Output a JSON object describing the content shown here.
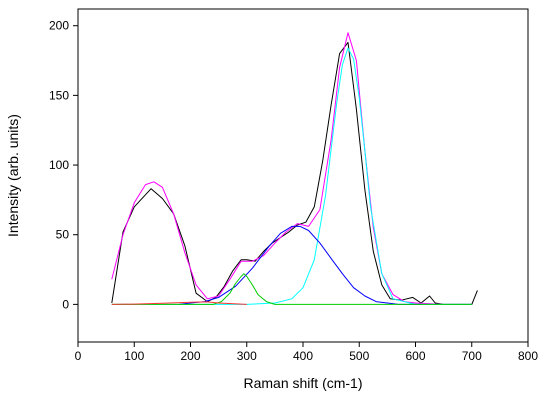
{
  "chart_data": {
    "type": "line",
    "xlabel": "Raman shift (cm-1)",
    "ylabel": "Intensity (arb. units)",
    "xlim": [
      0,
      800
    ],
    "ylim": [
      -27,
      212
    ],
    "xticks": [
      0,
      100,
      200,
      300,
      400,
      500,
      600,
      700,
      800
    ],
    "yticks": [
      0,
      50,
      100,
      150,
      200
    ],
    "grid": false,
    "legend": "none",
    "series": [
      {
        "color": "#000000",
        "x": [
          60,
          80,
          100,
          130,
          150,
          170,
          190,
          210,
          230,
          245,
          260,
          275,
          290,
          300,
          315,
          330,
          345,
          360,
          375,
          390,
          405,
          420,
          435,
          450,
          465,
          480,
          495,
          510,
          525,
          540,
          555,
          575,
          595,
          610,
          625,
          635,
          650,
          680,
          700,
          710
        ],
        "y": [
          1,
          52,
          70,
          83,
          76,
          65,
          42,
          8,
          2,
          5,
          13,
          24,
          32,
          32,
          31,
          38,
          44,
          48,
          52,
          57,
          59,
          70,
          103,
          143,
          180,
          188,
          140,
          82,
          38,
          14,
          4,
          3,
          5,
          1,
          6,
          1,
          0,
          0,
          0,
          10
        ]
      },
      {
        "color": "#ff00ff",
        "x": [
          60,
          80,
          100,
          120,
          135,
          150,
          170,
          190,
          210,
          230,
          250,
          270,
          290,
          310,
          330,
          350,
          370,
          390,
          410,
          430,
          450,
          465,
          480,
          495,
          510,
          525,
          540,
          560,
          580,
          600,
          650,
          700
        ],
        "y": [
          18,
          50,
          73,
          86,
          88,
          84,
          65,
          37,
          14,
          4,
          6,
          18,
          31,
          31,
          35,
          44,
          52,
          58,
          56,
          68,
          118,
          170,
          195,
          175,
          110,
          55,
          22,
          7,
          2,
          1,
          0,
          0
        ]
      },
      {
        "color": "#00ffff",
        "x": [
          60,
          300,
          350,
          380,
          400,
          420,
          440,
          460,
          470,
          480,
          490,
          500,
          510,
          520,
          540,
          560,
          600,
          700
        ],
        "y": [
          0,
          0,
          1,
          4,
          12,
          32,
          78,
          145,
          172,
          184,
          176,
          148,
          110,
          70,
          22,
          4,
          0,
          0
        ]
      },
      {
        "color": "#0000ff",
        "x": [
          180,
          200,
          225,
          250,
          280,
          310,
          340,
          360,
          380,
          395,
          410,
          430,
          450,
          470,
          490,
          510,
          530,
          550,
          570,
          590,
          610
        ],
        "y": [
          0,
          1,
          2,
          5,
          13,
          26,
          42,
          51,
          56,
          56,
          53,
          44,
          33,
          22,
          12,
          6,
          2,
          1,
          0,
          0,
          0
        ]
      },
      {
        "color": "#00cc00",
        "x": [
          60,
          240,
          255,
          270,
          280,
          290,
          295,
          300,
          310,
          320,
          335,
          350,
          700
        ],
        "y": [
          0,
          0,
          2,
          8,
          15,
          20,
          22,
          20,
          14,
          7,
          2,
          0,
          0
        ]
      },
      {
        "color": "#ff3333",
        "x": [
          60,
          100,
          150,
          200,
          230,
          250,
          300
        ],
        "y": [
          0,
          0.2,
          0.8,
          1.5,
          1.8,
          1,
          0
        ]
      }
    ]
  }
}
